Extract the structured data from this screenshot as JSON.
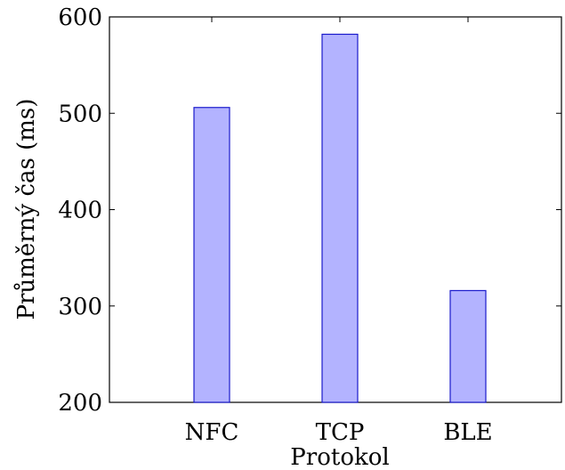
{
  "chart_data": {
    "type": "bar",
    "categories": [
      "NFC",
      "TCP",
      "BLE"
    ],
    "values": [
      506,
      582,
      316
    ],
    "title": "",
    "xlabel": "Protokol",
    "ylabel": "Průměrný čas (ms)",
    "ylim": [
      200,
      600
    ],
    "yticks": [
      "200",
      "300",
      "400",
      "500",
      "600"
    ],
    "grid": false,
    "legend": "none",
    "colors": {
      "bar_fill": "#b3b3ff",
      "bar_stroke": "#1a1acc",
      "axis": "#000000"
    }
  }
}
